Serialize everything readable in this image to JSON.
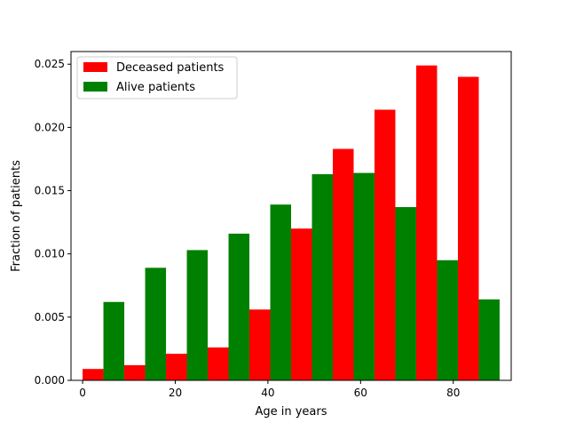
{
  "chart_data": {
    "type": "bar",
    "title": "",
    "xlabel": "Age in years",
    "ylabel": "Fraction of patients",
    "xlim": [
      -2.5,
      92.5
    ],
    "ylim": [
      0,
      0.026
    ],
    "xticks": [
      0,
      20,
      40,
      60,
      80
    ],
    "xtick_labels": [
      "0",
      "20",
      "40",
      "60",
      "80"
    ],
    "yticks": [
      0,
      0.005,
      0.01,
      0.015,
      0.02,
      0.025
    ],
    "ytick_labels": [
      "0.000",
      "0.005",
      "0.010",
      "0.015",
      "0.020",
      "0.025"
    ],
    "grid": false,
    "legend_position": "top-left",
    "bin_edges": [
      0,
      9,
      18,
      27,
      36,
      45,
      54,
      63,
      72,
      81,
      90
    ],
    "series": [
      {
        "name": "Deceased patients",
        "color": "#ff0000",
        "values": [
          0.0009,
          0.0012,
          0.0021,
          0.0026,
          0.0056,
          0.012,
          0.0183,
          0.0214,
          0.0249,
          0.024
        ]
      },
      {
        "name": "Alive patients",
        "color": "#008000",
        "values": [
          0.0062,
          0.0089,
          0.0103,
          0.0116,
          0.0139,
          0.0163,
          0.0164,
          0.0137,
          0.0095,
          0.0064
        ]
      }
    ]
  }
}
